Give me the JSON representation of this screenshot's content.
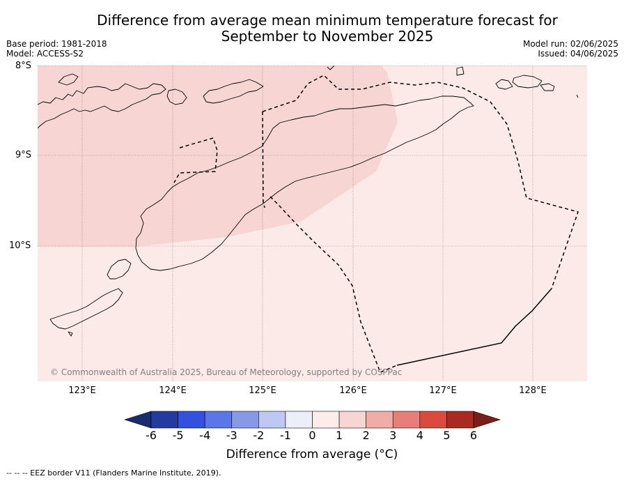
{
  "title_line1": "Difference from average mean minimum temperature forecast for",
  "title_line2": "September to November 2025",
  "base_period": "Base period: 1981-2018",
  "model": "Model: ACCESS-S2",
  "model_run": "Model run: 02/06/2025",
  "issued": "Issued: 04/06/2025",
  "map": {
    "lat_labels": [
      "8°S",
      "9°S",
      "10°S"
    ],
    "lon_labels": [
      "123°E",
      "124°E",
      "125°E",
      "126°E",
      "127°E",
      "128°E"
    ],
    "background_color": "#fbeae8",
    "anomaly_region_color": "#f6d5d3",
    "copyright": "© Commonwealth of Australia 2025, Bureau of Meteorology, supported by COSPPac"
  },
  "colorbar": {
    "ticks": [
      "-6",
      "-5",
      "-4",
      "-3",
      "-2",
      "-1",
      "0",
      "1",
      "2",
      "3",
      "4",
      "5",
      "6"
    ],
    "colors": [
      "#233b9f",
      "#3350df",
      "#5b76e6",
      "#8599e7",
      "#bfc8f2",
      "#eceef9",
      "#fcecea",
      "#f6d5d3",
      "#f0aca6",
      "#e77e77",
      "#dc4a3f",
      "#aa2a21"
    ],
    "under_color": "#1a2a6e",
    "over_color": "#7a1e18",
    "label": "Difference from average (°C)"
  },
  "footnote": "-- -- -- EEZ border V11 (Flanders Marine Institute, 2019)."
}
